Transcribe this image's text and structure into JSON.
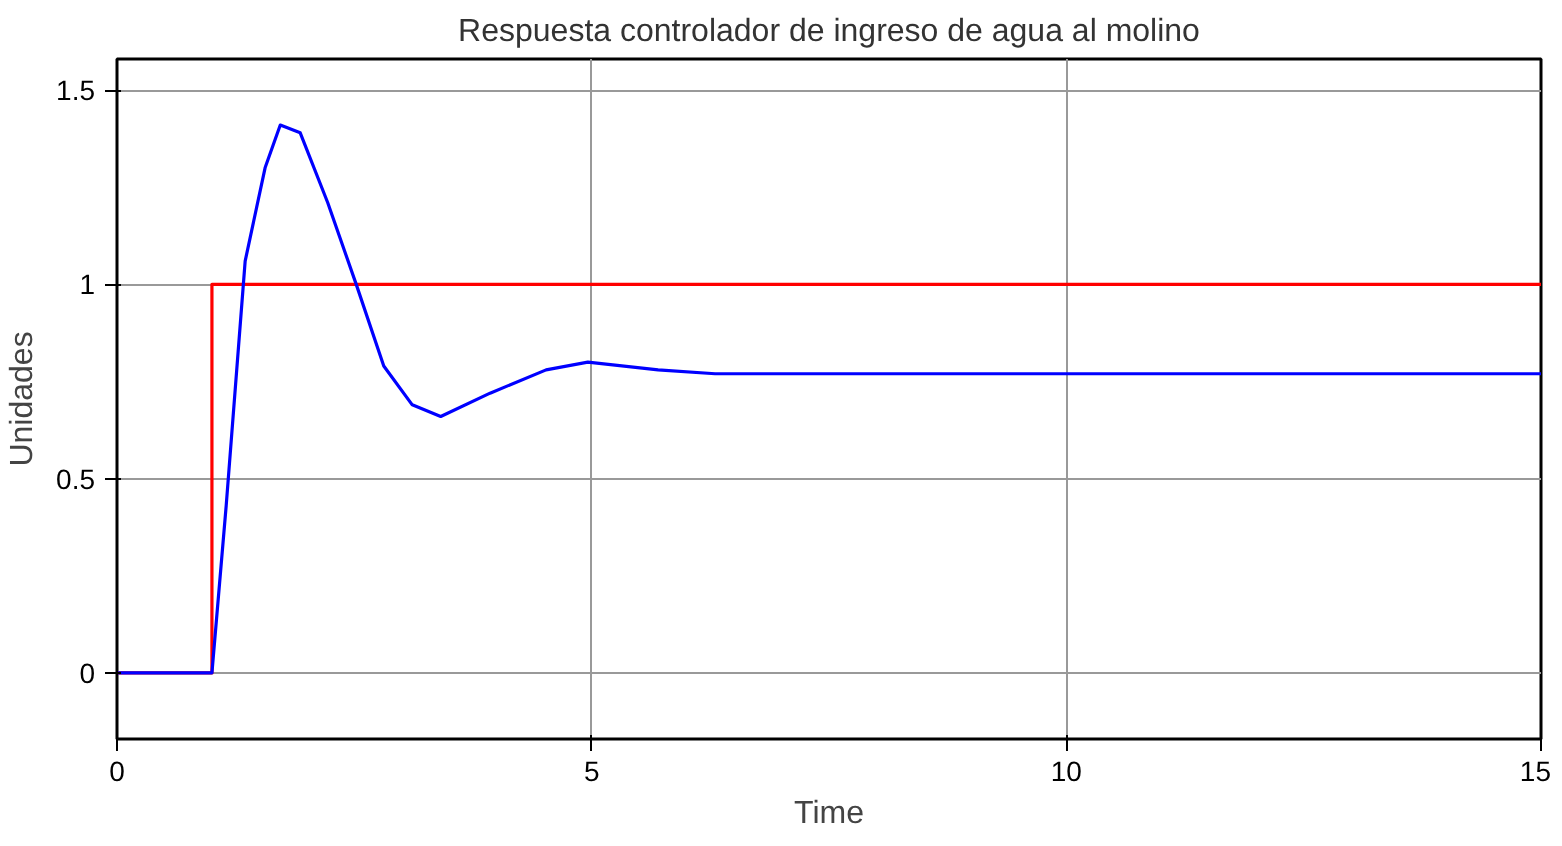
{
  "chart_data": {
    "type": "line",
    "title": "Respuesta controlador de ingreso de agua al molino",
    "xlabel": "Time",
    "ylabel": "Unidades",
    "xlim": [
      0,
      15
    ],
    "xticks": [
      0,
      5,
      10,
      15
    ],
    "ylim": [
      -0.17,
      1.58
    ],
    "yticks": [
      0,
      0.5,
      1,
      1.5
    ],
    "grid": true,
    "line_style": "solid",
    "series": [
      {
        "color": "#ff0000",
        "x": [
          0,
          1,
          1,
          15
        ],
        "values": [
          0,
          0,
          1,
          1
        ]
      },
      {
        "color": "#0000ff",
        "x": [
          0,
          1,
          1.15,
          1.35,
          1.56,
          1.72,
          1.93,
          2.22,
          2.52,
          2.81,
          3.11,
          3.41,
          3.93,
          4.52,
          4.96,
          5.7,
          6.3,
          8,
          10,
          12,
          15
        ],
        "values": [
          0,
          0,
          0.43,
          1.06,
          1.3,
          1.41,
          1.39,
          1.21,
          1.0,
          0.79,
          0.69,
          0.66,
          0.72,
          0.78,
          0.8,
          0.78,
          0.77,
          0.77,
          0.77,
          0.77,
          0.77
        ]
      }
    ]
  }
}
